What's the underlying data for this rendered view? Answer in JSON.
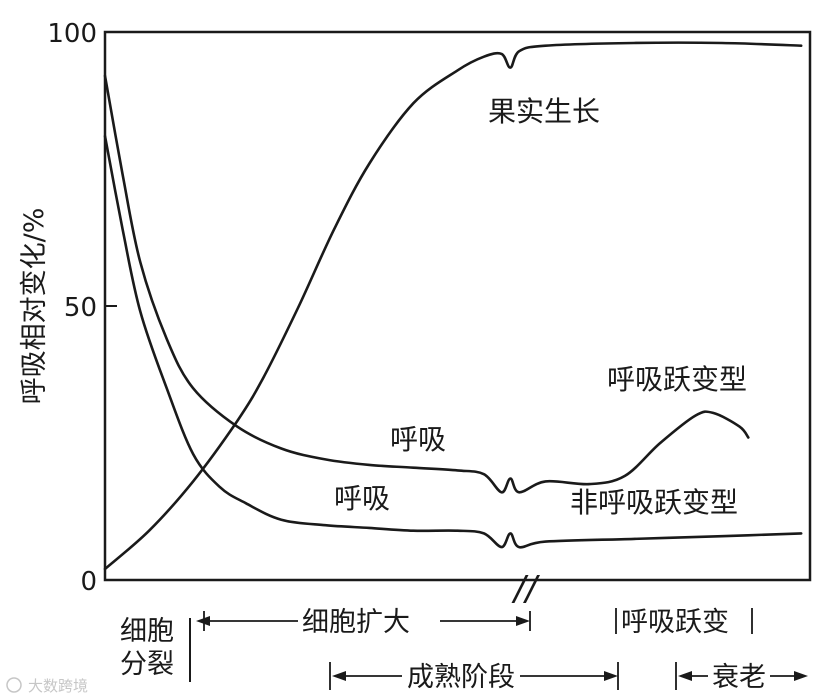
{
  "chart_data": {
    "type": "line",
    "title": "",
    "xlabel": "",
    "ylabel": "呼吸相对变化/%",
    "ylim": [
      0,
      100
    ],
    "yticks": [
      "0",
      "50",
      "100"
    ],
    "grid": false,
    "axis_break_symbol": "//",
    "series": [
      {
        "name": "果实生长",
        "points": [
          [
            0,
            2
          ],
          [
            5,
            9
          ],
          [
            10,
            18
          ],
          [
            15,
            29
          ],
          [
            18,
            37
          ],
          [
            22,
            50
          ],
          [
            26,
            64
          ],
          [
            30,
            76
          ],
          [
            35,
            87
          ],
          [
            40,
            93
          ],
          [
            43,
            95.5
          ],
          [
            45,
            96
          ],
          [
            46,
            93.5
          ],
          [
            47,
            96.5
          ],
          [
            50,
            97.5
          ],
          [
            60,
            98
          ],
          [
            70,
            98
          ],
          [
            79,
            97.5
          ]
        ]
      },
      {
        "name": "呼吸",
        "points": [
          [
            0,
            92
          ],
          [
            2,
            74
          ],
          [
            4,
            58
          ],
          [
            7,
            44
          ],
          [
            10,
            35
          ],
          [
            15,
            28
          ],
          [
            20,
            24
          ],
          [
            25,
            22
          ],
          [
            30,
            21
          ],
          [
            35,
            20.5
          ],
          [
            40,
            20
          ],
          [
            43,
            19.3
          ],
          [
            45,
            16
          ],
          [
            46,
            18.5
          ],
          [
            47,
            16
          ],
          [
            50,
            18
          ],
          [
            55,
            17.5
          ],
          [
            59,
            19
          ],
          [
            63,
            25
          ],
          [
            67,
            30
          ],
          [
            69,
            30.5
          ],
          [
            72,
            28
          ],
          [
            73,
            26
          ]
        ]
      },
      {
        "name": "呼吸",
        "points": [
          [
            0,
            81
          ],
          [
            2,
            64
          ],
          [
            4,
            49
          ],
          [
            7,
            35
          ],
          [
            10,
            23
          ],
          [
            13,
            17
          ],
          [
            16,
            14
          ],
          [
            20,
            11
          ],
          [
            25,
            10
          ],
          [
            30,
            9.5
          ],
          [
            35,
            9
          ],
          [
            40,
            9
          ],
          [
            43,
            8.5
          ],
          [
            45,
            6
          ],
          [
            46,
            8.5
          ],
          [
            47,
            6
          ],
          [
            50,
            7
          ],
          [
            60,
            7.5
          ],
          [
            70,
            8
          ],
          [
            79,
            8.5
          ]
        ]
      }
    ],
    "annotations": [
      "呼吸跃变型",
      "非呼吸跃变型"
    ],
    "stages": [
      {
        "label": "细胞",
        "label2": "分裂"
      },
      {
        "label": "细胞扩大"
      },
      {
        "label": "呼吸跃变"
      },
      {
        "label": "成熟阶段"
      },
      {
        "label": "衰老"
      }
    ]
  },
  "watermark": "大数跨境"
}
